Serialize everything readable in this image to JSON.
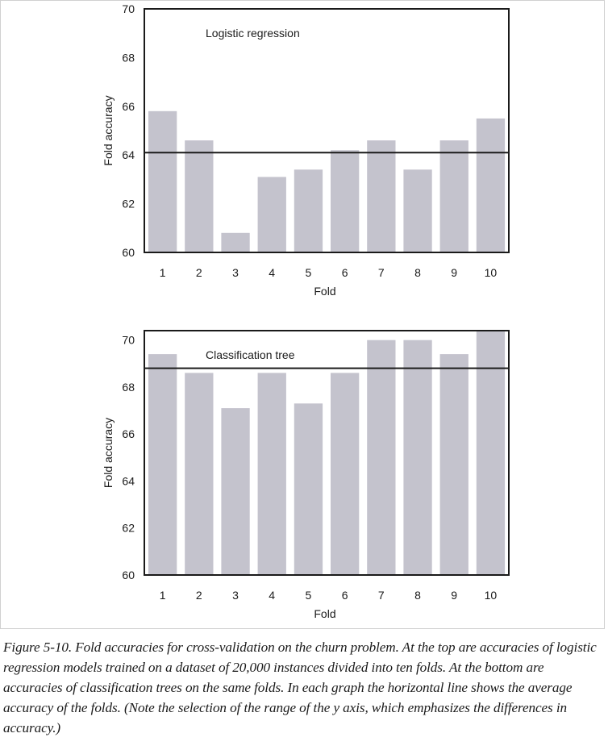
{
  "chart_data": [
    {
      "type": "bar",
      "title": "Logistic regression",
      "xlabel": "Fold",
      "ylabel": "Fold accuracy",
      "categories": [
        "1",
        "2",
        "3",
        "4",
        "5",
        "6",
        "7",
        "8",
        "9",
        "10"
      ],
      "values": [
        65.8,
        64.6,
        60.8,
        63.1,
        63.4,
        64.2,
        64.6,
        63.4,
        64.6,
        65.5
      ],
      "mean": 64.1,
      "ylim": [
        60,
        70
      ],
      "yticks": [
        60,
        62,
        64,
        66,
        68,
        70
      ],
      "grid": false,
      "bar_color": "#c4c3cd",
      "line_color": "#1a1a1a"
    },
    {
      "type": "bar",
      "title": "Classification tree",
      "xlabel": "Fold",
      "ylabel": "Fold accuracy",
      "categories": [
        "1",
        "2",
        "3",
        "4",
        "5",
        "6",
        "7",
        "8",
        "9",
        "10"
      ],
      "values": [
        69.4,
        68.6,
        67.1,
        68.6,
        67.3,
        68.6,
        70.0,
        70.0,
        69.4,
        70.4
      ],
      "mean": 68.8,
      "ylim": [
        60,
        70.4
      ],
      "yticks": [
        60,
        62,
        64,
        66,
        68,
        70
      ],
      "grid": false,
      "bar_color": "#c4c3cd",
      "line_color": "#1a1a1a"
    }
  ],
  "caption": "Figure 5-10. Fold accuracies for cross-validation on the churn problem. At the top are accuracies of logistic regression models trained on a dataset of 20,000 instances divided into ten folds. At the bottom are accuracies of classification trees on the same folds. In each graph the horizontal line shows the average accuracy of the folds. (Note the selection of the range of the y axis, which emphasizes the differences in accuracy.)"
}
